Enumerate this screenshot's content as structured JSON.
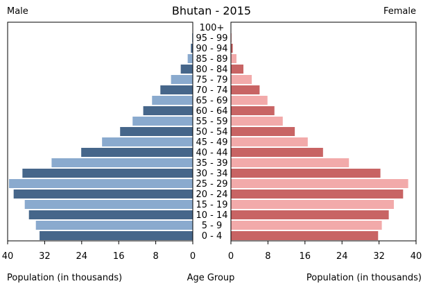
{
  "chart_data": {
    "type": "bar",
    "title": "Bhutan - 2015",
    "left_series_label": "Male",
    "right_series_label": "Female",
    "categories": [
      "0 - 4",
      "5 - 9",
      "10 - 14",
      "15 - 19",
      "20 - 24",
      "25 - 29",
      "30 - 34",
      "35 - 39",
      "40 - 44",
      "45 - 49",
      "50 - 54",
      "55 - 59",
      "60 - 64",
      "65 - 69",
      "70 - 74",
      "75 - 79",
      "80 - 84",
      "85 - 89",
      "90 - 94",
      "95 - 99",
      "100+"
    ],
    "series": [
      {
        "name": "Male",
        "values": [
          33.1,
          33.9,
          35.4,
          36.3,
          38.7,
          39.7,
          36.8,
          30.5,
          24.1,
          19.6,
          15.7,
          13.0,
          10.7,
          8.8,
          7.0,
          4.7,
          2.6,
          1.1,
          0.4,
          0.15,
          0.05
        ]
      },
      {
        "name": "Female",
        "values": [
          31.8,
          32.6,
          34.1,
          35.2,
          37.2,
          38.3,
          32.3,
          25.5,
          19.9,
          16.6,
          13.8,
          11.2,
          9.4,
          7.9,
          6.2,
          4.5,
          2.7,
          1.2,
          0.4,
          0.15,
          0.05
        ]
      }
    ],
    "male_colors": [
      "#46668a",
      "#8aaace"
    ],
    "female_colors": [
      "#c86464",
      "#f2aaaa"
    ],
    "xlim": [
      0,
      40
    ],
    "xticks": [
      40,
      32,
      24,
      16,
      8,
      0
    ],
    "xtick_labels_left": [
      "40",
      "32",
      "24",
      "16",
      "8",
      "0"
    ],
    "xtick_labels_right": [
      "0",
      "8",
      "16",
      "24",
      "32",
      "40"
    ],
    "xlabel_left": "Population (in thousands)",
    "xlabel_center": "Age Group",
    "xlabel_right": "Population (in thousands)"
  }
}
